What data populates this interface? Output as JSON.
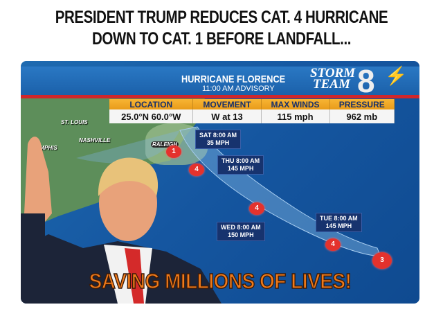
{
  "headline": [
    "PRESIDENT TRUMP REDUCES CAT. 4 HURRICANE",
    "DOWN TO CAT. 1 BEFORE LANDFALL..."
  ],
  "banner": {
    "title": "HURRICANE FLORENCE",
    "subtitle": "11:00 AM  ADVISORY",
    "logo_text": [
      "STORM",
      "TEAM"
    ],
    "logo_number": "8"
  },
  "table": {
    "headers": [
      "LOCATION",
      "MOVEMENT",
      "MAX WINDS",
      "PRESSURE"
    ],
    "values": [
      "25.0°N 60.0°W",
      "W at 13",
      "115 mph",
      "962 mb"
    ]
  },
  "cities": [
    "ST. LOUIS",
    "NASHVILLE",
    "EMPHIS",
    "RALEIGH"
  ],
  "forecast_labels": [
    {
      "time": "SAT 8:00 AM",
      "speed": "35 MPH"
    },
    {
      "time": "THU 8:00 AM",
      "speed": "145 MPH"
    },
    {
      "time": "WED 8:00 AM",
      "speed": "150 MPH"
    },
    {
      "time": "TUE 8:00 AM",
      "speed": "145 MPH"
    }
  ],
  "storm_categories": [
    "1",
    "4",
    "4",
    "4",
    "3"
  ],
  "caption": "SAVING MILLIONS OF LIVES!",
  "colors": {
    "ocean": "#1556a0",
    "banner_red": "#d0262b",
    "header_orange": "#f0a52a",
    "caption_orange": "#f07a1a",
    "storm_red": "#e4322d"
  }
}
